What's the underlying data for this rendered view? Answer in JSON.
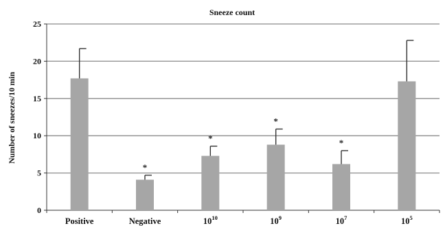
{
  "chart_data": {
    "type": "bar",
    "title": "Sneeze count",
    "xlabel": "",
    "ylabel": "Number of sneezes/10 min",
    "ylim": [
      0,
      25
    ],
    "yticks": [
      "0",
      "5",
      "10",
      "15",
      "20",
      "25"
    ],
    "grid": true,
    "categories": [
      {
        "base": "Positive",
        "sup": ""
      },
      {
        "base": "Negative",
        "sup": ""
      },
      {
        "base": "10",
        "sup": "10"
      },
      {
        "base": "10",
        "sup": "9"
      },
      {
        "base": "10",
        "sup": "7"
      },
      {
        "base": "10",
        "sup": "5"
      }
    ],
    "values": [
      17.7,
      4.1,
      7.3,
      8.8,
      6.2,
      17.3
    ],
    "errors": [
      4.0,
      0.6,
      1.3,
      2.1,
      1.8,
      5.5
    ],
    "significance": [
      "",
      "*",
      "*",
      "*",
      "*",
      ""
    ],
    "bar_color": "#a6a6a6",
    "grid_color": "#8a8a8a"
  }
}
